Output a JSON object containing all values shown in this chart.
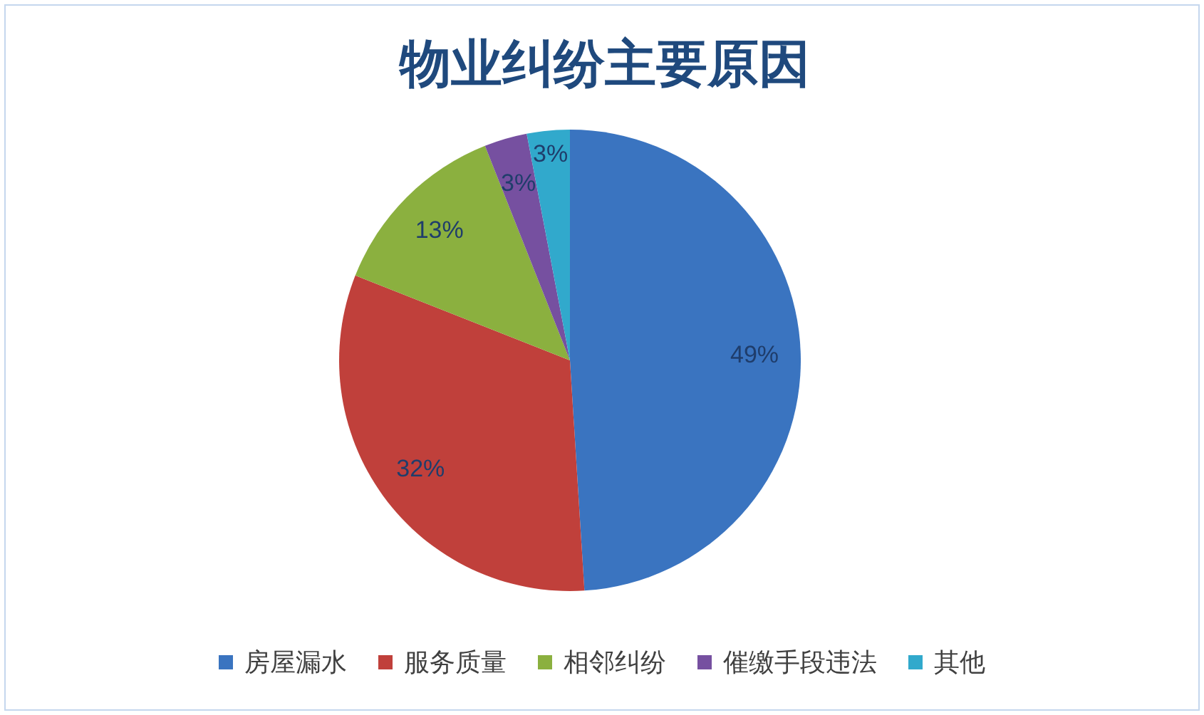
{
  "chart_data": {
    "type": "pie",
    "title": "物业纠纷主要原因",
    "categories": [
      "房屋漏水",
      "服务质量",
      "相邻纠纷",
      "催缴手段违法",
      "其他"
    ],
    "values": [
      49,
      32,
      13,
      3,
      3
    ],
    "colors": [
      "#3a74c0",
      "#c0403b",
      "#8bb03f",
      "#7650a0",
      "#31a9cc"
    ],
    "value_labels": [
      "49%",
      "32%",
      "13%",
      "3%",
      "3%"
    ],
    "legend": "bottom"
  }
}
